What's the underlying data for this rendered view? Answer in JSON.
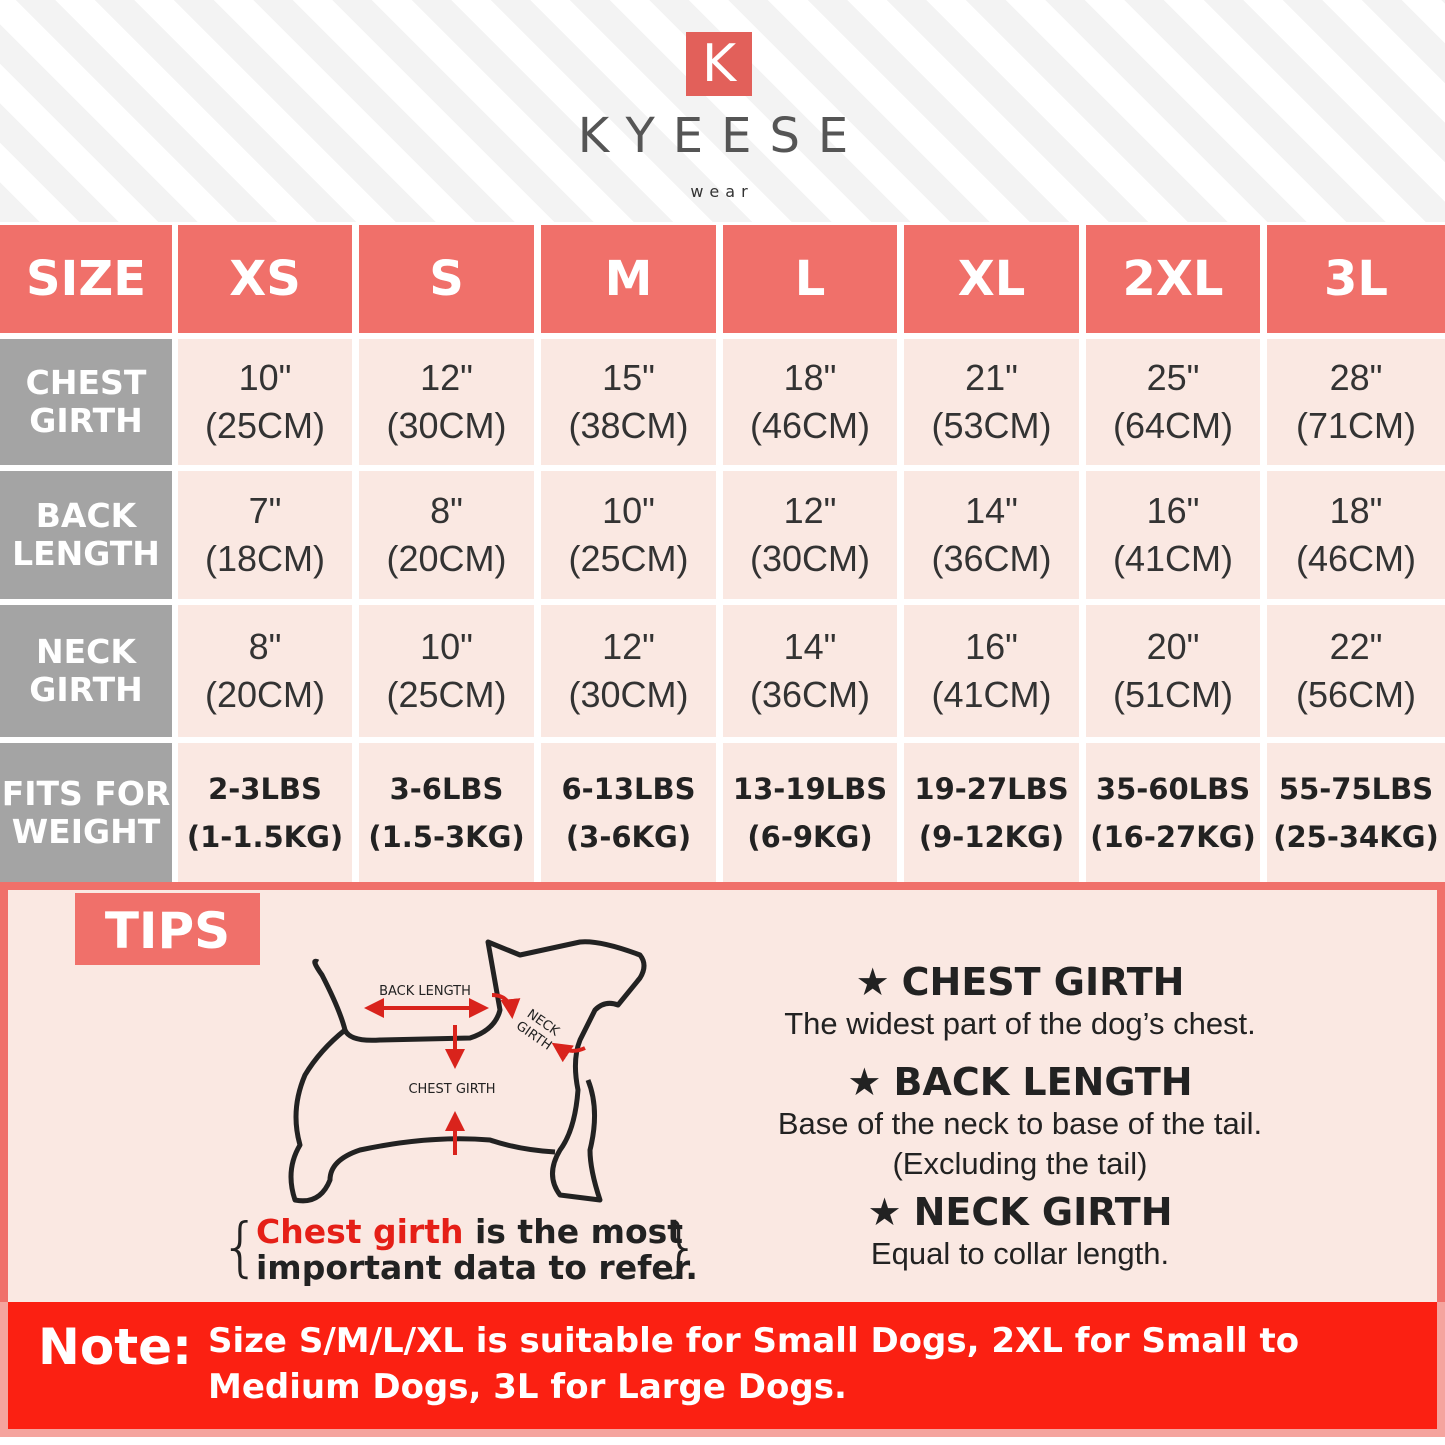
{
  "brand": {
    "logo": "K",
    "name": "KYEESE",
    "tagline": "wear"
  },
  "table": {
    "header": [
      "SIZE",
      "XS",
      "S",
      "M",
      "L",
      "XL",
      "2XL",
      "3L"
    ],
    "rows": [
      {
        "label": [
          "CHEST",
          "GIRTH"
        ],
        "cells": [
          [
            "10\"",
            "(25CM)"
          ],
          [
            "12\"",
            "(30CM)"
          ],
          [
            "15\"",
            "(38CM)"
          ],
          [
            "18\"",
            "(46CM)"
          ],
          [
            "21\"",
            "(53CM)"
          ],
          [
            "25\"",
            "(64CM)"
          ],
          [
            "28\"",
            "(71CM)"
          ]
        ]
      },
      {
        "label": [
          "BACK",
          "LENGTH"
        ],
        "cells": [
          [
            "7\"",
            "(18CM)"
          ],
          [
            "8\"",
            "(20CM)"
          ],
          [
            "10\"",
            "(25CM)"
          ],
          [
            "12\"",
            "(30CM)"
          ],
          [
            "14\"",
            "(36CM)"
          ],
          [
            "16\"",
            "(41CM)"
          ],
          [
            "18\"",
            "(46CM)"
          ]
        ]
      },
      {
        "label": [
          "NECK",
          "GIRTH"
        ],
        "cells": [
          [
            "8\"",
            "(20CM)"
          ],
          [
            "10\"",
            "(25CM)"
          ],
          [
            "12\"",
            "(30CM)"
          ],
          [
            "14\"",
            "(36CM)"
          ],
          [
            "16\"",
            "(41CM)"
          ],
          [
            "20\"",
            "(51CM)"
          ],
          [
            "22\"",
            "(56CM)"
          ]
        ]
      },
      {
        "label": [
          "FITS FOR",
          "WEIGHT"
        ],
        "cells": [
          [
            "2-3LBS",
            "(1-1.5KG)"
          ],
          [
            "3-6LBS",
            "(1.5-3KG)"
          ],
          [
            "6-13LBS",
            "(3-6KG)"
          ],
          [
            "13-19LBS",
            "(6-9KG)"
          ],
          [
            "19-27LBS",
            "(9-12KG)"
          ],
          [
            "35-60LBS",
            "(16-27KG)"
          ],
          [
            "55-75LBS",
            "(25-34KG)"
          ]
        ]
      }
    ]
  },
  "tips": {
    "title": "TIPS",
    "diagram": {
      "back": "BACK LENGTH",
      "neck": [
        "NECK",
        "GIRTH"
      ],
      "chest": "CHEST GIRTH"
    },
    "caption": {
      "highlight": "Chest girth",
      "rest": "is the most",
      "line2": "important data to refer."
    },
    "items": [
      {
        "title": "CHEST GIRTH",
        "lines": [
          "The widest part of the dog’s chest."
        ]
      },
      {
        "title": "BACK LENGTH",
        "lines": [
          "Base of the neck to base of the tail.",
          "(Excluding the tail)"
        ]
      },
      {
        "title": "NECK GIRTH",
        "lines": [
          "Equal to collar length."
        ]
      }
    ]
  },
  "note": {
    "label": "Note:",
    "lines": [
      "Size S/M/L/XL is suitable for Small Dogs, 2XL for Small to",
      "Medium Dogs, 3L for Large Dogs."
    ]
  }
}
